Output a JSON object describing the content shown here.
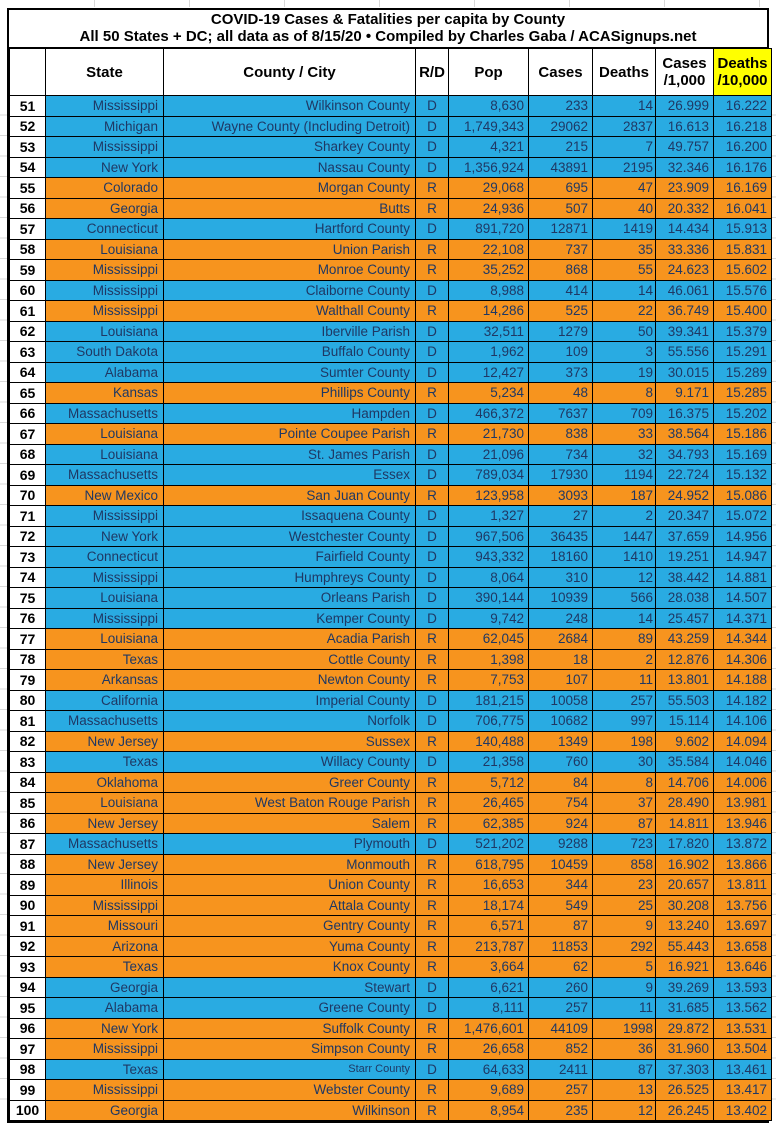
{
  "title": {
    "line1": "COVID-19 Cases & Fatalities per capita by County",
    "line2": "All 50 States + DC; all data as of 8/15/20  • Compiled by Charles Gaba / ACASignups.net"
  },
  "colors": {
    "dem_blue": "#29ABE2",
    "rep_orange": "#F7941E",
    "highlight_yellow": "#FFFF00"
  },
  "columns": [
    {
      "lines": [
        ""
      ]
    },
    {
      "lines": [
        "State"
      ]
    },
    {
      "lines": [
        "County / City"
      ]
    },
    {
      "lines": [
        "R/D"
      ]
    },
    {
      "lines": [
        "Pop"
      ]
    },
    {
      "lines": [
        "Cases"
      ]
    },
    {
      "lines": [
        "Deaths"
      ]
    },
    {
      "lines": [
        "Cases",
        "/1,000"
      ]
    },
    {
      "lines": [
        "Deaths",
        "/10,000"
      ],
      "highlight": true
    }
  ],
  "rows": [
    {
      "rank": "51",
      "state": "Mississippi",
      "county": "Wilkinson County",
      "party": "D",
      "pop": "8,630",
      "cases": "233",
      "deaths": "14",
      "cases_per_1000": "26.999",
      "deaths_per_10000": "16.222"
    },
    {
      "rank": "52",
      "state": "Michigan",
      "county": "Wayne County (Including Detroit)",
      "party": "D",
      "pop": "1,749,343",
      "cases": "29062",
      "deaths": "2837",
      "cases_per_1000": "16.613",
      "deaths_per_10000": "16.218"
    },
    {
      "rank": "53",
      "state": "Mississippi",
      "county": "Sharkey County",
      "party": "D",
      "pop": "4,321",
      "cases": "215",
      "deaths": "7",
      "cases_per_1000": "49.757",
      "deaths_per_10000": "16.200"
    },
    {
      "rank": "54",
      "state": "New York",
      "county": "Nassau County",
      "party": "D",
      "pop": "1,356,924",
      "cases": "43891",
      "deaths": "2195",
      "cases_per_1000": "32.346",
      "deaths_per_10000": "16.176"
    },
    {
      "rank": "55",
      "state": "Colorado",
      "county": "Morgan County",
      "party": "R",
      "pop": "29,068",
      "cases": "695",
      "deaths": "47",
      "cases_per_1000": "23.909",
      "deaths_per_10000": "16.169"
    },
    {
      "rank": "56",
      "state": "Georgia",
      "county": "Butts",
      "party": "R",
      "pop": "24,936",
      "cases": "507",
      "deaths": "40",
      "cases_per_1000": "20.332",
      "deaths_per_10000": "16.041"
    },
    {
      "rank": "57",
      "state": "Connecticut",
      "county": "Hartford County",
      "party": "D",
      "pop": "891,720",
      "cases": "12871",
      "deaths": "1419",
      "cases_per_1000": "14.434",
      "deaths_per_10000": "15.913"
    },
    {
      "rank": "58",
      "state": "Louisiana",
      "county": "Union Parish",
      "party": "R",
      "pop": "22,108",
      "cases": "737",
      "deaths": "35",
      "cases_per_1000": "33.336",
      "deaths_per_10000": "15.831"
    },
    {
      "rank": "59",
      "state": "Mississippi",
      "county": "Monroe County",
      "party": "R",
      "pop": "35,252",
      "cases": "868",
      "deaths": "55",
      "cases_per_1000": "24.623",
      "deaths_per_10000": "15.602"
    },
    {
      "rank": "60",
      "state": "Mississippi",
      "county": "Claiborne County",
      "party": "D",
      "pop": "8,988",
      "cases": "414",
      "deaths": "14",
      "cases_per_1000": "46.061",
      "deaths_per_10000": "15.576"
    },
    {
      "rank": "61",
      "state": "Mississippi",
      "county": "Walthall County",
      "party": "R",
      "pop": "14,286",
      "cases": "525",
      "deaths": "22",
      "cases_per_1000": "36.749",
      "deaths_per_10000": "15.400"
    },
    {
      "rank": "62",
      "state": "Louisiana",
      "county": "Iberville Parish",
      "party": "D",
      "pop": "32,511",
      "cases": "1279",
      "deaths": "50",
      "cases_per_1000": "39.341",
      "deaths_per_10000": "15.379"
    },
    {
      "rank": "63",
      "state": "South Dakota",
      "county": "Buffalo County",
      "party": "D",
      "pop": "1,962",
      "cases": "109",
      "deaths": "3",
      "cases_per_1000": "55.556",
      "deaths_per_10000": "15.291"
    },
    {
      "rank": "64",
      "state": "Alabama",
      "county": "Sumter County",
      "party": "D",
      "pop": "12,427",
      "cases": "373",
      "deaths": "19",
      "cases_per_1000": "30.015",
      "deaths_per_10000": "15.289"
    },
    {
      "rank": "65",
      "state": "Kansas",
      "county": "Phillips County",
      "party": "R",
      "pop": "5,234",
      "cases": "48",
      "deaths": "8",
      "cases_per_1000": "9.171",
      "deaths_per_10000": "15.285"
    },
    {
      "rank": "66",
      "state": "Massachusetts",
      "county": "Hampden",
      "party": "D",
      "pop": "466,372",
      "cases": "7637",
      "deaths": "709",
      "cases_per_1000": "16.375",
      "deaths_per_10000": "15.202"
    },
    {
      "rank": "67",
      "state": "Louisiana",
      "county": "Pointe Coupee Parish",
      "party": "R",
      "pop": "21,730",
      "cases": "838",
      "deaths": "33",
      "cases_per_1000": "38.564",
      "deaths_per_10000": "15.186"
    },
    {
      "rank": "68",
      "state": "Louisiana",
      "county": "St. James Parish",
      "party": "D",
      "pop": "21,096",
      "cases": "734",
      "deaths": "32",
      "cases_per_1000": "34.793",
      "deaths_per_10000": "15.169"
    },
    {
      "rank": "69",
      "state": "Massachusetts",
      "county": "Essex",
      "party": "D",
      "pop": "789,034",
      "cases": "17930",
      "deaths": "1194",
      "cases_per_1000": "22.724",
      "deaths_per_10000": "15.132"
    },
    {
      "rank": "70",
      "state": "New Mexico",
      "county": "San Juan County",
      "party": "R",
      "pop": "123,958",
      "cases": "3093",
      "deaths": "187",
      "cases_per_1000": "24.952",
      "deaths_per_10000": "15.086"
    },
    {
      "rank": "71",
      "state": "Mississippi",
      "county": "Issaquena County",
      "party": "D",
      "pop": "1,327",
      "cases": "27",
      "deaths": "2",
      "cases_per_1000": "20.347",
      "deaths_per_10000": "15.072"
    },
    {
      "rank": "72",
      "state": "New York",
      "county": "Westchester County",
      "party": "D",
      "pop": "967,506",
      "cases": "36435",
      "deaths": "1447",
      "cases_per_1000": "37.659",
      "deaths_per_10000": "14.956"
    },
    {
      "rank": "73",
      "state": "Connecticut",
      "county": "Fairfield County",
      "party": "D",
      "pop": "943,332",
      "cases": "18160",
      "deaths": "1410",
      "cases_per_1000": "19.251",
      "deaths_per_10000": "14.947"
    },
    {
      "rank": "74",
      "state": "Mississippi",
      "county": "Humphreys County",
      "party": "D",
      "pop": "8,064",
      "cases": "310",
      "deaths": "12",
      "cases_per_1000": "38.442",
      "deaths_per_10000": "14.881"
    },
    {
      "rank": "75",
      "state": "Louisiana",
      "county": "Orleans Parish",
      "party": "D",
      "pop": "390,144",
      "cases": "10939",
      "deaths": "566",
      "cases_per_1000": "28.038",
      "deaths_per_10000": "14.507"
    },
    {
      "rank": "76",
      "state": "Mississippi",
      "county": "Kemper County",
      "party": "D",
      "pop": "9,742",
      "cases": "248",
      "deaths": "14",
      "cases_per_1000": "25.457",
      "deaths_per_10000": "14.371"
    },
    {
      "rank": "77",
      "state": "Louisiana",
      "county": "Acadia Parish",
      "party": "R",
      "pop": "62,045",
      "cases": "2684",
      "deaths": "89",
      "cases_per_1000": "43.259",
      "deaths_per_10000": "14.344"
    },
    {
      "rank": "78",
      "state": "Texas",
      "county": "Cottle County",
      "party": "R",
      "pop": "1,398",
      "cases": "18",
      "deaths": "2",
      "cases_per_1000": "12.876",
      "deaths_per_10000": "14.306"
    },
    {
      "rank": "79",
      "state": "Arkansas",
      "county": "Newton County",
      "party": "R",
      "pop": "7,753",
      "cases": "107",
      "deaths": "11",
      "cases_per_1000": "13.801",
      "deaths_per_10000": "14.188"
    },
    {
      "rank": "80",
      "state": "California",
      "county": "Imperial County",
      "party": "D",
      "pop": "181,215",
      "cases": "10058",
      "deaths": "257",
      "cases_per_1000": "55.503",
      "deaths_per_10000": "14.182"
    },
    {
      "rank": "81",
      "state": "Massachusetts",
      "county": "Norfolk",
      "party": "D",
      "pop": "706,775",
      "cases": "10682",
      "deaths": "997",
      "cases_per_1000": "15.114",
      "deaths_per_10000": "14.106"
    },
    {
      "rank": "82",
      "state": "New Jersey",
      "county": "Sussex",
      "party": "R",
      "pop": "140,488",
      "cases": "1349",
      "deaths": "198",
      "cases_per_1000": "9.602",
      "deaths_per_10000": "14.094"
    },
    {
      "rank": "83",
      "state": "Texas",
      "county": "Willacy County",
      "party": "D",
      "pop": "21,358",
      "cases": "760",
      "deaths": "30",
      "cases_per_1000": "35.584",
      "deaths_per_10000": "14.046"
    },
    {
      "rank": "84",
      "state": "Oklahoma",
      "county": "Greer County",
      "party": "R",
      "pop": "5,712",
      "cases": "84",
      "deaths": "8",
      "cases_per_1000": "14.706",
      "deaths_per_10000": "14.006"
    },
    {
      "rank": "85",
      "state": "Louisiana",
      "county": "West Baton Rouge Parish",
      "party": "R",
      "pop": "26,465",
      "cases": "754",
      "deaths": "37",
      "cases_per_1000": "28.490",
      "deaths_per_10000": "13.981"
    },
    {
      "rank": "86",
      "state": "New Jersey",
      "county": "Salem",
      "party": "R",
      "pop": "62,385",
      "cases": "924",
      "deaths": "87",
      "cases_per_1000": "14.811",
      "deaths_per_10000": "13.946"
    },
    {
      "rank": "87",
      "state": "Massachusetts",
      "county": "Plymouth",
      "party": "D",
      "pop": "521,202",
      "cases": "9288",
      "deaths": "723",
      "cases_per_1000": "17.820",
      "deaths_per_10000": "13.872"
    },
    {
      "rank": "88",
      "state": "New Jersey",
      "county": "Monmouth",
      "party": "R",
      "pop": "618,795",
      "cases": "10459",
      "deaths": "858",
      "cases_per_1000": "16.902",
      "deaths_per_10000": "13.866"
    },
    {
      "rank": "89",
      "state": "Illinois",
      "county": "Union County",
      "party": "R",
      "pop": "16,653",
      "cases": "344",
      "deaths": "23",
      "cases_per_1000": "20.657",
      "deaths_per_10000": "13.811"
    },
    {
      "rank": "90",
      "state": "Mississippi",
      "county": "Attala County",
      "party": "R",
      "pop": "18,174",
      "cases": "549",
      "deaths": "25",
      "cases_per_1000": "30.208",
      "deaths_per_10000": "13.756"
    },
    {
      "rank": "91",
      "state": "Missouri",
      "county": "Gentry County",
      "party": "R",
      "pop": "6,571",
      "cases": "87",
      "deaths": "9",
      "cases_per_1000": "13.240",
      "deaths_per_10000": "13.697"
    },
    {
      "rank": "92",
      "state": "Arizona",
      "county": "Yuma County",
      "party": "R",
      "pop": "213,787",
      "cases": "11853",
      "deaths": "292",
      "cases_per_1000": "55.443",
      "deaths_per_10000": "13.658"
    },
    {
      "rank": "93",
      "state": "Texas",
      "county": "Knox County",
      "party": "R",
      "pop": "3,664",
      "cases": "62",
      "deaths": "5",
      "cases_per_1000": "16.921",
      "deaths_per_10000": "13.646"
    },
    {
      "rank": "94",
      "state": "Georgia",
      "county": "Stewart",
      "party": "D",
      "pop": "6,621",
      "cases": "260",
      "deaths": "9",
      "cases_per_1000": "39.269",
      "deaths_per_10000": "13.593"
    },
    {
      "rank": "95",
      "state": "Alabama",
      "county": "Greene County",
      "party": "D",
      "pop": "8,111",
      "cases": "257",
      "deaths": "11",
      "cases_per_1000": "31.685",
      "deaths_per_10000": "13.562"
    },
    {
      "rank": "96",
      "state": "New York",
      "county": "Suffolk County",
      "party": "R",
      "pop": "1,476,601",
      "cases": "44109",
      "deaths": "1998",
      "cases_per_1000": "29.872",
      "deaths_per_10000": "13.531"
    },
    {
      "rank": "97",
      "state": "Mississippi",
      "county": "Simpson County",
      "party": "R",
      "pop": "26,658",
      "cases": "852",
      "deaths": "36",
      "cases_per_1000": "31.960",
      "deaths_per_10000": "13.504"
    },
    {
      "rank": "98",
      "state": "Texas",
      "county": "Starr County",
      "party": "D",
      "small_county": true,
      "pop": "64,633",
      "cases": "2411",
      "deaths": "87",
      "cases_per_1000": "37.303",
      "deaths_per_10000": "13.461"
    },
    {
      "rank": "99",
      "state": "Mississippi",
      "county": "Webster County",
      "party": "R",
      "pop": "9,689",
      "cases": "257",
      "deaths": "13",
      "cases_per_1000": "26.525",
      "deaths_per_10000": "13.417"
    },
    {
      "rank": "100",
      "state": "Georgia",
      "county": "Wilkinson",
      "party": "R",
      "pop": "8,954",
      "cases": "235",
      "deaths": "12",
      "cases_per_1000": "26.245",
      "deaths_per_10000": "13.402"
    }
  ]
}
